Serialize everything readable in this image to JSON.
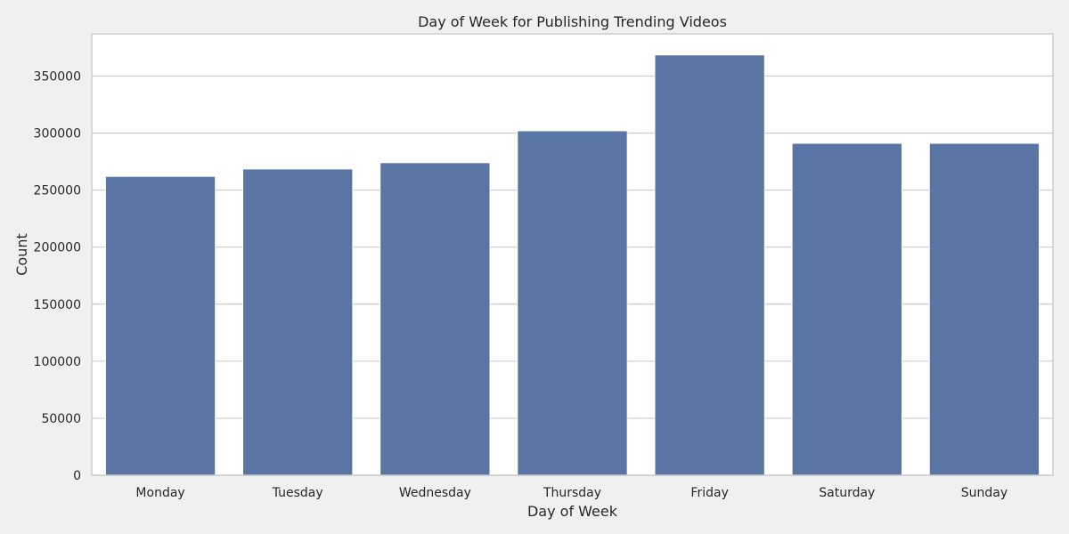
{
  "chart_data": {
    "type": "bar",
    "title": "Day of Week for Publishing Trending Videos",
    "xlabel": "Day of Week",
    "ylabel": "Count",
    "categories": [
      "Monday",
      "Tuesday",
      "Wednesday",
      "Thursday",
      "Friday",
      "Saturday",
      "Sunday"
    ],
    "values": [
      262000,
      268500,
      274000,
      302000,
      368500,
      291000,
      291000
    ],
    "ylim": [
      0,
      387000
    ],
    "yticks": [
      0,
      50000,
      100000,
      150000,
      200000,
      250000,
      300000,
      350000
    ],
    "grid": true,
    "legend": "none",
    "colors": {
      "bar": "#5875a4",
      "bar_edge": "#ffffff",
      "plot_bg": "#ffffff",
      "figure_bg": "#f0f0f0",
      "grid": "#cccccc",
      "spine": "#cccccc",
      "text": "#262626"
    }
  }
}
